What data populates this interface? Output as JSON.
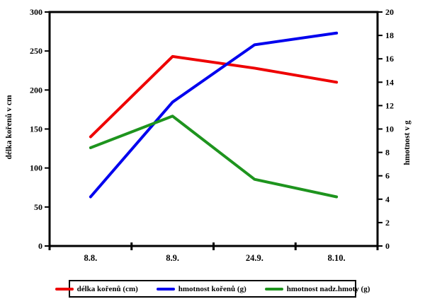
{
  "chart_data": {
    "type": "line",
    "categories": [
      "8.8.",
      "8.9.",
      "24.9.",
      "8.10."
    ],
    "series": [
      {
        "name": "délka kořenů (cm)",
        "axis": "left",
        "color": "#ee0000",
        "values": [
          140,
          243,
          228,
          210
        ]
      },
      {
        "name": "hmotnost kořenů (g)",
        "axis": "right",
        "color": "#0000ee",
        "values": [
          4.2,
          12.3,
          17.2,
          18.2
        ]
      },
      {
        "name": "hmotnost nadz.hmoty (g)",
        "axis": "right",
        "color": "#1e941e",
        "values": [
          8.4,
          11.1,
          5.7,
          4.2
        ]
      }
    ],
    "title": "",
    "xlabel": "",
    "ylabel_left": "délka kořenů v cm",
    "ylabel_right": "hmotnost v g",
    "ylim_left": [
      0,
      300
    ],
    "ylim_right": [
      0,
      20
    ],
    "yticks_left": [
      0,
      50,
      100,
      150,
      200,
      250,
      300
    ],
    "yticks_right": [
      0,
      2,
      4,
      6,
      8,
      10,
      12,
      14,
      16,
      18,
      20
    ],
    "grid": false,
    "legend_position": "bottom"
  }
}
